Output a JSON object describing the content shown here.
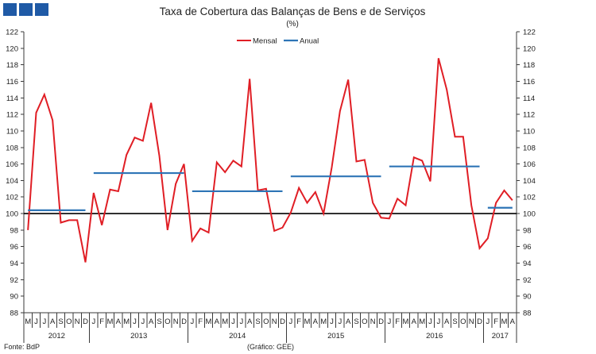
{
  "logo": {
    "icon": "three-blue-squares-logo",
    "color": "#1f5aa6"
  },
  "chart_data": {
    "type": "line",
    "title": "Taxa de Cobertura das Balanças de Bens e de Serviços",
    "subtitle": "(%)",
    "ylim": [
      88,
      122
    ],
    "yticks": [
      88,
      90,
      92,
      94,
      96,
      98,
      100,
      102,
      104,
      106,
      108,
      110,
      112,
      114,
      116,
      118,
      120,
      122
    ],
    "y_axis_sides": [
      "left",
      "right"
    ],
    "grid": false,
    "legend": "top-center",
    "reference_line": 100,
    "reference_line_color": "#000000",
    "groups": [
      {
        "label": "2012",
        "months": [
          "M",
          "J",
          "J",
          "A",
          "S",
          "O",
          "N",
          "D"
        ]
      },
      {
        "label": "2013",
        "months": [
          "J",
          "F",
          "M",
          "A",
          "M",
          "J",
          "J",
          "A",
          "S",
          "O",
          "N",
          "D"
        ]
      },
      {
        "label": "2014",
        "months": [
          "J",
          "F",
          "M",
          "A",
          "M",
          "J",
          "J",
          "A",
          "S",
          "O",
          "N",
          "D"
        ]
      },
      {
        "label": "2015",
        "months": [
          "J",
          "F",
          "M",
          "A",
          "M",
          "J",
          "J",
          "A",
          "S",
          "O",
          "N",
          "D"
        ]
      },
      {
        "label": "2016",
        "months": [
          "J",
          "F",
          "M",
          "A",
          "M",
          "J",
          "J",
          "A",
          "S",
          "O",
          "N",
          "D"
        ]
      },
      {
        "label": "2017",
        "months": [
          "J",
          "F",
          "M",
          "A"
        ]
      }
    ],
    "series": [
      {
        "name": "Mensal",
        "color": "#e01e25",
        "values": [
          98.0,
          112.2,
          114.4,
          111.3,
          98.9,
          99.2,
          99.2,
          94.1,
          102.5,
          98.6,
          102.9,
          102.7,
          107.1,
          109.2,
          108.8,
          113.4,
          107.0,
          98.0,
          103.6,
          106.0,
          96.7,
          98.2,
          97.7,
          106.2,
          105.0,
          106.4,
          105.7,
          116.3,
          102.8,
          103.0,
          97.9,
          98.3,
          100.1,
          103.1,
          101.3,
          102.6,
          100.0,
          105.6,
          112.4,
          116.2,
          106.3,
          106.5,
          101.3,
          99.5,
          99.4,
          101.8,
          101.0,
          106.8,
          106.4,
          103.9,
          118.8,
          115.0,
          109.3,
          109.3,
          101.0,
          95.8,
          97.0,
          101.3,
          102.8,
          101.6
        ]
      },
      {
        "name": "Anual",
        "color": "#2e75b6",
        "values": [
          100.4,
          104.9,
          102.7,
          104.5,
          105.7,
          100.7
        ]
      }
    ]
  },
  "footer": {
    "source": "Fonte: BdP",
    "credit": "(Gráfico: GEE)"
  }
}
